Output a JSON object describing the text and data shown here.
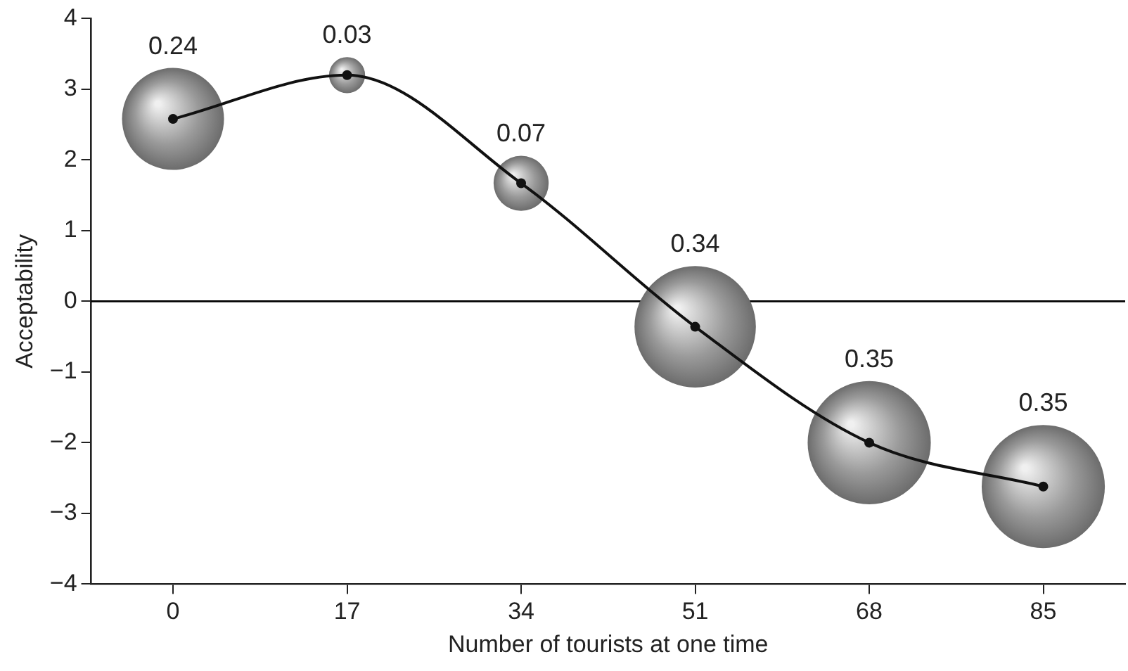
{
  "chart_data": {
    "type": "bubble",
    "xlabel": "Number of tourists at one time",
    "ylabel": "Acceptability",
    "x": [
      0,
      17,
      34,
      51,
      68,
      85
    ],
    "series": [
      {
        "color": "#9a9a9a",
        "values": [
          2.58,
          3.2,
          1.67,
          -0.36,
          -2.0,
          -2.62
        ],
        "sizes": [
          0.24,
          0.03,
          0.07,
          0.34,
          0.35,
          0.35
        ],
        "value_labels": [
          "0.24",
          "0.03",
          "0.07",
          "0.34",
          "0.35",
          "0.35"
        ]
      },
      {
        "type": "line",
        "color": "#111111",
        "values": [
          2.58,
          3.2,
          1.67,
          -0.36,
          -2.0,
          -2.62
        ],
        "marker": "circle",
        "line_style": "solid"
      }
    ],
    "xlim": [
      -8,
      93
    ],
    "xticks": [
      0,
      17,
      34,
      51,
      68,
      85
    ],
    "ylim": [
      -4,
      4
    ],
    "yticks": [
      -4,
      -3,
      -2,
      -1,
      0,
      1,
      2,
      3,
      4
    ],
    "ref_lines": [
      {
        "axis": "y",
        "value": 0,
        "color": "#000000"
      }
    ],
    "grid": false,
    "legend": false
  }
}
